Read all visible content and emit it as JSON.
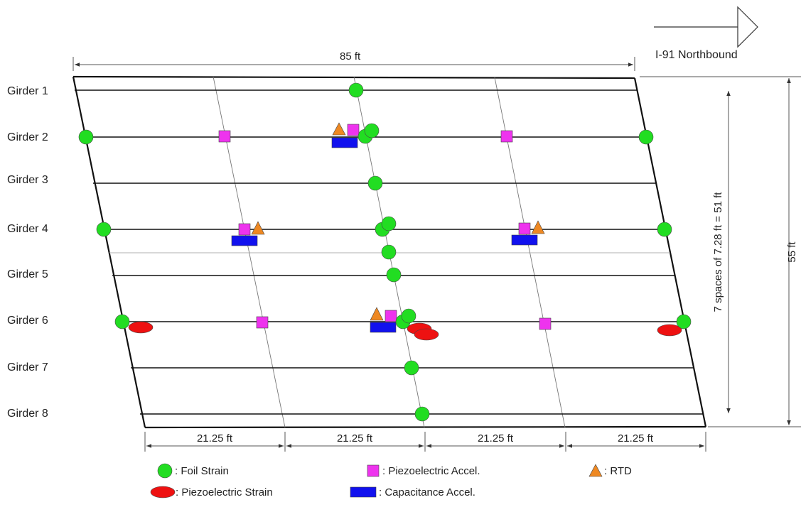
{
  "direction": {
    "label": "I-91 Northbound"
  },
  "dimensions": {
    "top_length": "85 ft",
    "total_width": "55 ft",
    "girder_spacing": "7 spaces of 7.28 ft = 51 ft",
    "bottom_spans": [
      "21.25 ft",
      "21.25 ft",
      "21.25 ft",
      "21.25 ft"
    ]
  },
  "girders": [
    "Girder 1",
    "Girder 2",
    "Girder 3",
    "Girder 4",
    "Girder 5",
    "Girder 6",
    "Girder 7",
    "Girder 8"
  ],
  "legend": {
    "foil_strain": ": Foil Strain",
    "piezo_strain": ": Piezoelectric Strain",
    "piezo_accel": ": Piezoelectric Accel.",
    "cap_accel": ": Capacitance Accel.",
    "rtd": ": RTD"
  },
  "colors": {
    "foil_strain": "#22dd22",
    "piezo_strain": "#ee1111",
    "piezo_accel": "#ee33ee",
    "cap_accel": "#1111ee",
    "rtd": "#ee8822"
  }
}
